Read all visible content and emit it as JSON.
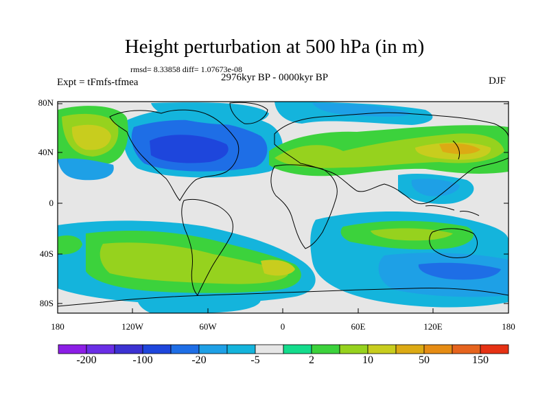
{
  "title": "Height perturbation at 500 hPa (in m)",
  "stats": "rmsd= 8.33858  diff= 1.07673e-08",
  "left_label": "Expt = tFmfs-tfmea",
  "period_label": "2976kyr BP - 0000kyr BP",
  "season_label": "DJF",
  "axes": {
    "lat_ticks": [
      "80N",
      "40N",
      "0",
      "40S",
      "80S"
    ],
    "lon_ticks": [
      "180",
      "120W",
      "60W",
      "0",
      "60E",
      "120E",
      "180"
    ]
  },
  "colorbar": {
    "colors": [
      "#8c1ee6",
      "#6a2ee6",
      "#3c32d2",
      "#1e46dc",
      "#1e6ee6",
      "#1ea0e6",
      "#14b4dc",
      "#e6e6e6",
      "#14dc8c",
      "#3cd23c",
      "#96d21e",
      "#c8cd1e",
      "#dcaa14",
      "#e68c14",
      "#e6641e",
      "#e63214"
    ],
    "labels": [
      "-200",
      "-100",
      "-20",
      "-5",
      "2",
      "10",
      "50",
      "150"
    ]
  }
}
